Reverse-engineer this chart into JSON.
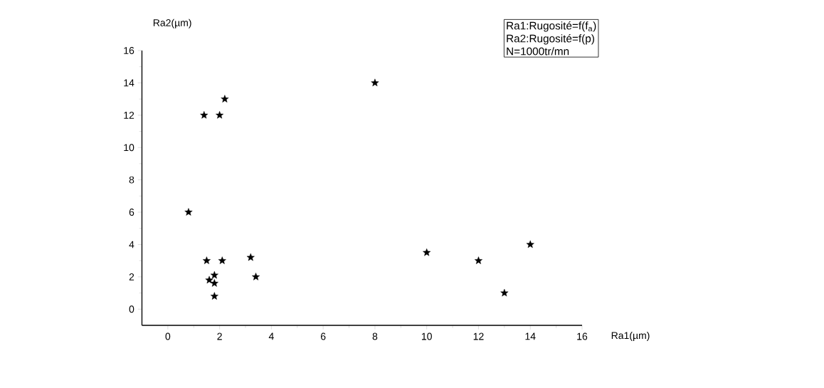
{
  "chart_data": {
    "type": "scatter",
    "xlabel": "Ra1(µm)",
    "ylabel": "Ra2(µm)",
    "annotations": [
      "Ra1:Rugosité=f(f$_{a}$)",
      "Ra2:Rugosité=f(p)",
      "N=1000tr/mn"
    ],
    "x": [
      0.8,
      1.4,
      2.0,
      2.2,
      1.5,
      2.1,
      1.6,
      1.8,
      1.8,
      1.8,
      3.2,
      3.4,
      8,
      10,
      12,
      13,
      14
    ],
    "values": [
      6,
      12,
      12,
      13,
      3,
      3,
      1.8,
      2.1,
      1.6,
      0.8,
      3.2,
      2,
      14,
      3.5,
      3,
      1,
      4
    ],
    "color": "#000000",
    "marker": "star",
    "xlim": [
      -1,
      16
    ],
    "ylim": [
      -1,
      16
    ],
    "xticks": [
      0,
      2,
      4,
      6,
      8,
      10,
      12,
      14,
      16
    ],
    "yticks": [
      0,
      2,
      4,
      6,
      8,
      10,
      12,
      14,
      16
    ],
    "grid": false
  }
}
